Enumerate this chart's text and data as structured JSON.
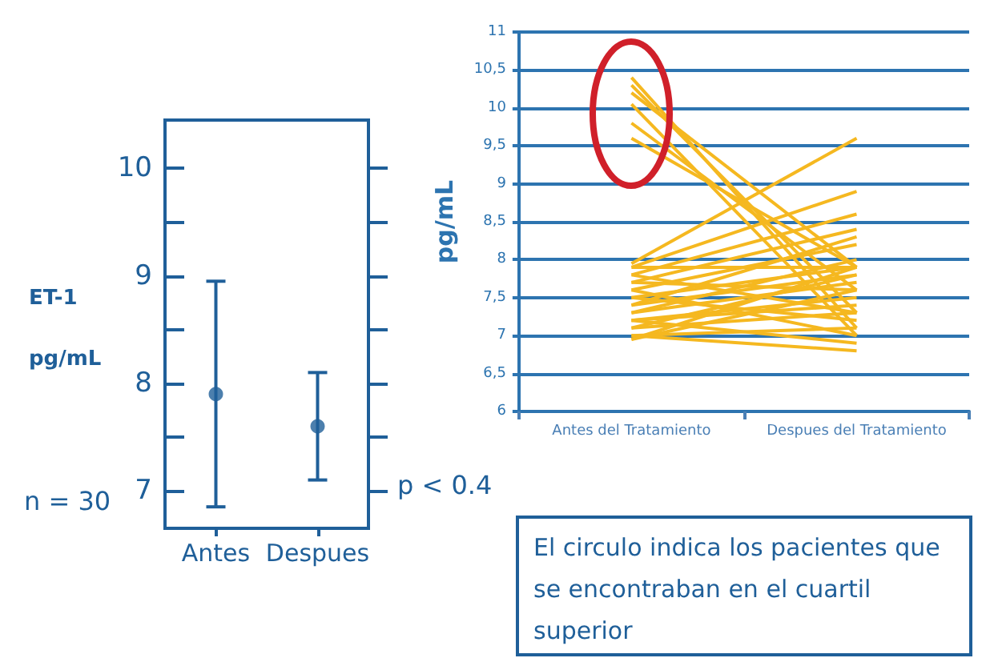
{
  "chart_data": [
    {
      "type": "scatter",
      "categories": [
        "Antes",
        "Despues"
      ],
      "marker": "circle",
      "grid": false,
      "series": [
        {
          "color": "#1f5f99",
          "values": [
            7.9,
            7.6
          ],
          "errors": [
            [
              6.85,
              8.95
            ],
            [
              7.1,
              8.1
            ]
          ]
        }
      ],
      "ylim": [
        6.65,
        10.45
      ],
      "yticks": [
        7,
        {
          "value": 7.5,
          "label": null
        },
        8,
        {
          "value": 8.5,
          "label": null
        },
        9,
        {
          "value": 9.5,
          "label": null
        },
        10
      ],
      "annotations": [
        "ET-1",
        "pg/mL",
        "n = 30",
        "p < 0.4"
      ]
    },
    {
      "type": "line",
      "categories": [
        "Antes del Tratamiento",
        "Despues del Tratamiento"
      ],
      "ylabel": "pg/mL",
      "grid": "y",
      "marker": "none",
      "ylim": [
        6,
        11
      ],
      "yticks": [
        6,
        {
          "value": 6.5,
          "label": "6,5"
        },
        7,
        {
          "value": 7.5,
          "label": "7,5"
        },
        8,
        {
          "value": 8.5,
          "label": "8,5"
        },
        9,
        {
          "value": 9.5,
          "label": "9,5"
        },
        10,
        {
          "value": 10.5,
          "label": "10,5"
        },
        11
      ],
      "series": [
        {
          "color": "#f5b820",
          "values": [
            10.4,
            7.1
          ]
        },
        {
          "color": "#f5b820",
          "values": [
            10.3,
            7.3
          ]
        },
        {
          "color": "#f5b820",
          "values": [
            10.2,
            7.9
          ]
        },
        {
          "color": "#f5b820",
          "values": [
            10.05,
            7.0
          ]
        },
        {
          "color": "#f5b820",
          "values": [
            9.8,
            7.6
          ]
        },
        {
          "color": "#f5b820",
          "values": [
            9.6,
            7.9
          ]
        },
        {
          "color": "#f5b820",
          "values": [
            7.95,
            9.6
          ]
        },
        {
          "color": "#f5b820",
          "values": [
            7.9,
            8.9
          ]
        },
        {
          "color": "#f5b820",
          "values": [
            7.8,
            8.6
          ]
        },
        {
          "color": "#f5b820",
          "values": [
            7.7,
            8.4
          ]
        },
        {
          "color": "#f5b820",
          "values": [
            7.6,
            8.2
          ]
        },
        {
          "color": "#f5b820",
          "values": [
            7.5,
            7.9
          ]
        },
        {
          "color": "#f5b820",
          "values": [
            7.4,
            7.8
          ]
        },
        {
          "color": "#f5b820",
          "values": [
            7.3,
            7.7
          ]
        },
        {
          "color": "#f5b820",
          "values": [
            7.2,
            7.5
          ]
        },
        {
          "color": "#f5b820",
          "values": [
            7.1,
            7.3
          ]
        },
        {
          "color": "#f5b820",
          "values": [
            7.0,
            7.1
          ]
        },
        {
          "color": "#f5b820",
          "values": [
            6.95,
            7.6
          ]
        },
        {
          "color": "#f5b820",
          "values": [
            7.0,
            6.8
          ]
        },
        {
          "color": "#f5b820",
          "values": [
            7.2,
            6.9
          ]
        },
        {
          "color": "#f5b820",
          "values": [
            7.5,
            7.2
          ]
        },
        {
          "color": "#f5b820",
          "values": [
            7.8,
            7.3
          ]
        },
        {
          "color": "#f5b820",
          "values": [
            7.9,
            7.9
          ]
        },
        {
          "color": "#f5b820",
          "values": [
            7.6,
            7.0
          ]
        },
        {
          "color": "#f5b820",
          "values": [
            7.3,
            8.0
          ]
        },
        {
          "color": "#f5b820",
          "values": [
            7.1,
            7.8
          ]
        },
        {
          "color": "#f5b820",
          "values": [
            7.4,
            8.3
          ]
        },
        {
          "color": "#f5b820",
          "values": [
            7.2,
            7.4
          ]
        },
        {
          "color": "#f5b820",
          "values": [
            7.7,
            7.6
          ]
        },
        {
          "color": "#f5b820",
          "values": [
            6.95,
            7.9
          ]
        }
      ],
      "annotations": [
        "El circulo indica los pacientes que se encontraban en el cuartil superior"
      ]
    }
  ]
}
